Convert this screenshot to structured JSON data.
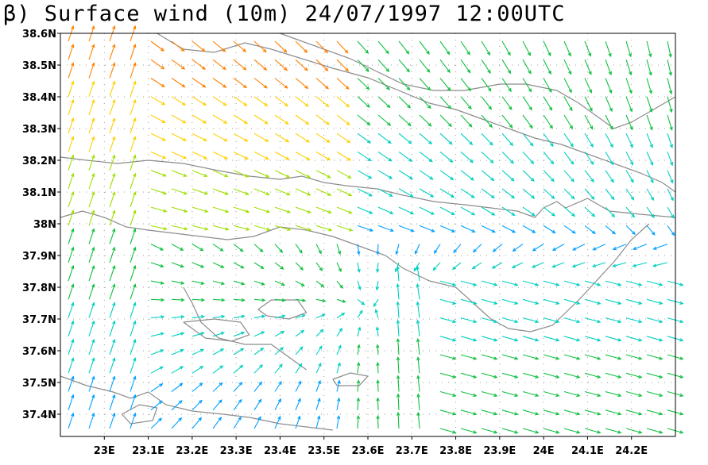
{
  "title": "β) Surface wind (10m) 24/07/1997 12:00UTC",
  "map": {
    "lon_range": [
      22.9,
      24.3
    ],
    "lat_range": [
      37.33,
      38.6
    ],
    "lat_ticks": [
      {
        "value": 38.6,
        "label": "38.6N"
      },
      {
        "value": 38.5,
        "label": "38.5N"
      },
      {
        "value": 38.4,
        "label": "38.4N"
      },
      {
        "value": 38.3,
        "label": "38.3N"
      },
      {
        "value": 38.2,
        "label": "38.2N"
      },
      {
        "value": 38.1,
        "label": "38.1N"
      },
      {
        "value": 38.0,
        "label": "38N"
      },
      {
        "value": 37.9,
        "label": "37.9N"
      },
      {
        "value": 37.8,
        "label": "37.8N"
      },
      {
        "value": 37.7,
        "label": "37.7N"
      },
      {
        "value": 37.6,
        "label": "37.6N"
      },
      {
        "value": 37.5,
        "label": "37.5N"
      },
      {
        "value": 37.4,
        "label": "37.4N"
      }
    ],
    "lon_ticks": [
      {
        "value": 23.0,
        "label": "23E"
      },
      {
        "value": 23.1,
        "label": "23.1E"
      },
      {
        "value": 23.2,
        "label": "23.2E"
      },
      {
        "value": 23.3,
        "label": "23.3E"
      },
      {
        "value": 23.4,
        "label": "23.4E"
      },
      {
        "value": 23.5,
        "label": "23.5E"
      },
      {
        "value": 23.6,
        "label": "23.6E"
      },
      {
        "value": 23.7,
        "label": "23.7E"
      },
      {
        "value": 23.8,
        "label": "23.8E"
      },
      {
        "value": 23.9,
        "label": "23.9E"
      },
      {
        "value": 24.0,
        "label": "24E"
      },
      {
        "value": 24.1,
        "label": "24.1E"
      },
      {
        "value": 24.2,
        "label": "24.2E"
      }
    ],
    "gridlines": true,
    "colors": {
      "frame": "#000000",
      "coastline": "#8c8c8c",
      "grid": "#9a9a9a",
      "wind_scale": [
        "#6a00a8",
        "#2020ff",
        "#00a0ff",
        "#00d0c0",
        "#10c040",
        "#a0e000",
        "#ffd000",
        "#ff8000",
        "#e02020"
      ]
    },
    "coastlines": [
      [
        [
          22.9,
          38.21
        ],
        [
          22.96,
          38.2
        ],
        [
          23.03,
          38.19
        ],
        [
          23.1,
          38.2
        ],
        [
          23.18,
          38.19
        ],
        [
          23.25,
          38.17
        ],
        [
          23.33,
          38.15
        ],
        [
          23.4,
          38.14
        ],
        [
          23.45,
          38.15
        ],
        [
          23.5,
          38.13
        ],
        [
          23.55,
          38.12
        ],
        [
          23.62,
          38.11
        ],
        [
          23.68,
          38.09
        ],
        [
          23.75,
          38.07
        ],
        [
          23.82,
          38.06
        ],
        [
          23.88,
          38.05
        ],
        [
          23.94,
          38.04
        ],
        [
          23.98,
          38.02
        ],
        [
          24.0,
          38.05
        ],
        [
          24.03,
          38.07
        ],
        [
          24.05,
          38.05
        ],
        [
          24.1,
          38.08
        ],
        [
          24.15,
          38.04
        ],
        [
          24.22,
          38.03
        ],
        [
          24.3,
          38.02
        ]
      ],
      [
        [
          22.9,
          38.02
        ],
        [
          22.95,
          38.04
        ],
        [
          23.0,
          38.02
        ],
        [
          23.05,
          37.99
        ],
        [
          23.1,
          37.98
        ],
        [
          23.16,
          37.97
        ],
        [
          23.22,
          37.96
        ],
        [
          23.28,
          37.95
        ],
        [
          23.34,
          37.96
        ],
        [
          23.4,
          37.99
        ],
        [
          23.46,
          37.98
        ],
        [
          23.52,
          37.96
        ],
        [
          23.58,
          37.93
        ],
        [
          23.64,
          37.9
        ],
        [
          23.68,
          37.86
        ],
        [
          23.74,
          37.82
        ],
        [
          23.8,
          37.8
        ],
        [
          23.84,
          37.75
        ],
        [
          23.88,
          37.7
        ],
        [
          23.92,
          37.67
        ],
        [
          23.97,
          37.66
        ],
        [
          24.02,
          37.68
        ],
        [
          24.05,
          37.72
        ],
        [
          24.08,
          37.76
        ],
        [
          24.12,
          37.82
        ],
        [
          24.16,
          37.88
        ],
        [
          24.2,
          37.95
        ],
        [
          24.24,
          38.0
        ]
      ],
      [
        [
          22.9,
          37.52
        ],
        [
          22.96,
          37.49
        ],
        [
          23.02,
          37.47
        ],
        [
          23.06,
          37.45
        ],
        [
          23.1,
          37.47
        ],
        [
          23.14,
          37.43
        ],
        [
          23.2,
          37.41
        ],
        [
          23.27,
          37.4
        ],
        [
          23.33,
          37.39
        ],
        [
          23.4,
          37.37
        ],
        [
          23.46,
          37.36
        ],
        [
          23.52,
          37.35
        ]
      ],
      [
        [
          23.18,
          37.8
        ],
        [
          23.2,
          37.75
        ],
        [
          23.22,
          37.69
        ],
        [
          23.26,
          37.64
        ],
        [
          23.32,
          37.62
        ],
        [
          23.38,
          37.62
        ],
        [
          23.42,
          37.58
        ],
        [
          23.46,
          37.54
        ]
      ],
      [
        [
          23.12,
          38.6
        ],
        [
          23.18,
          38.55
        ],
        [
          23.25,
          38.54
        ],
        [
          23.32,
          38.57
        ],
        [
          23.38,
          38.55
        ],
        [
          23.45,
          38.52
        ],
        [
          23.52,
          38.49
        ],
        [
          23.6,
          38.46
        ],
        [
          23.67,
          38.42
        ],
        [
          23.74,
          38.38
        ],
        [
          23.8,
          38.36
        ],
        [
          23.86,
          38.33
        ],
        [
          23.92,
          38.3
        ],
        [
          23.98,
          38.27
        ],
        [
          24.04,
          38.25
        ],
        [
          24.1,
          38.22
        ],
        [
          24.16,
          38.19
        ],
        [
          24.22,
          38.16
        ],
        [
          24.27,
          38.13
        ],
        [
          24.3,
          38.1
        ]
      ],
      [
        [
          23.4,
          38.6
        ],
        [
          23.48,
          38.56
        ],
        [
          23.56,
          38.52
        ],
        [
          23.62,
          38.48
        ],
        [
          23.68,
          38.44
        ],
        [
          23.75,
          38.42
        ],
        [
          23.82,
          38.42
        ],
        [
          23.9,
          38.44
        ],
        [
          23.96,
          38.44
        ],
        [
          24.03,
          38.42
        ],
        [
          24.08,
          38.38
        ],
        [
          24.12,
          38.34
        ],
        [
          24.16,
          38.3
        ],
        [
          24.2,
          38.32
        ],
        [
          24.25,
          38.36
        ],
        [
          24.3,
          38.4
        ]
      ],
      [
        [
          23.18,
          37.69
        ],
        [
          23.25,
          37.7
        ],
        [
          23.31,
          37.69
        ],
        [
          23.33,
          37.65
        ],
        [
          23.29,
          37.63
        ],
        [
          23.23,
          37.64
        ],
        [
          23.18,
          37.69
        ]
      ],
      [
        [
          23.35,
          37.73
        ],
        [
          23.38,
          37.76
        ],
        [
          23.44,
          37.76
        ],
        [
          23.46,
          37.72
        ],
        [
          23.42,
          37.7
        ],
        [
          23.37,
          37.71
        ],
        [
          23.35,
          37.73
        ]
      ],
      [
        [
          23.52,
          37.51
        ],
        [
          23.56,
          37.53
        ],
        [
          23.6,
          37.52
        ],
        [
          23.58,
          37.49
        ],
        [
          23.53,
          37.49
        ],
        [
          23.52,
          37.51
        ]
      ],
      [
        [
          23.04,
          37.4
        ],
        [
          23.08,
          37.43
        ],
        [
          23.12,
          37.42
        ],
        [
          23.11,
          37.38
        ],
        [
          23.06,
          37.37
        ],
        [
          23.04,
          37.4
        ]
      ]
    ]
  }
}
